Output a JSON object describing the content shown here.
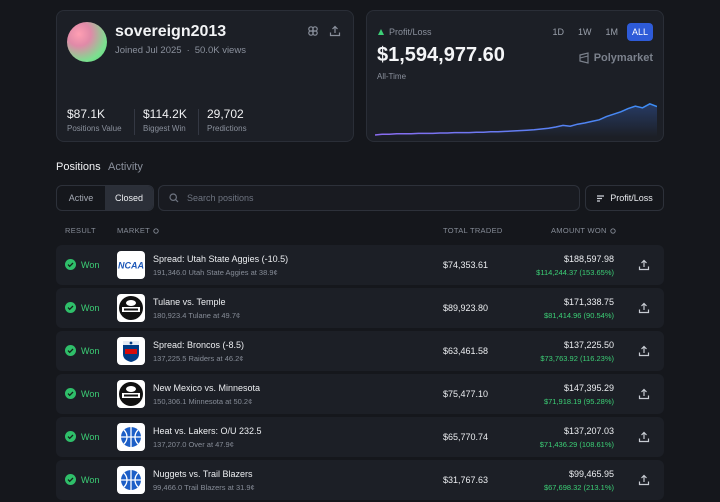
{
  "profile": {
    "username": "sovereign2013",
    "joined": "Joined Jul 2025",
    "views": "50.0K views",
    "stats": [
      {
        "value": "$87.1K",
        "label": "Positions Value"
      },
      {
        "value": "$114.2K",
        "label": "Biggest Win"
      },
      {
        "value": "29,702",
        "label": "Predictions"
      }
    ],
    "icons": [
      "link-icon",
      "share-icon"
    ]
  },
  "pnl": {
    "label": "Profit/Loss",
    "value": "$1,594,977.60",
    "period": "All-Time",
    "ranges": [
      "1D",
      "1W",
      "1M",
      "ALL"
    ],
    "active_range": "ALL",
    "brand": "Polymarket",
    "colors": {
      "line_start": "#8b6cf0",
      "line_end": "#3b8df5",
      "accent": "#2e5bd8"
    }
  },
  "tabs": {
    "positions": "Positions",
    "activity": "Activity"
  },
  "toolbar": {
    "active": "Active",
    "closed": "Closed",
    "search_placeholder": "Search positions",
    "sort_label": "Profit/Loss"
  },
  "table": {
    "headers": {
      "result": "RESULT",
      "market": "MARKET",
      "total_traded": "TOTAL TRADED",
      "amount_won": "AMOUNT WON"
    },
    "rows": [
      {
        "result": "Won",
        "logo": "ncaa",
        "market": "Spread: Utah State Aggies (-10.5)",
        "detail": "191,346.0 Utah State Aggies at 38.9¢",
        "traded": "$74,353.61",
        "amount": "$188,597.98",
        "gain": "$114,244.37 (153.65%)"
      },
      {
        "result": "Won",
        "logo": "college-football",
        "market": "Tulane vs. Temple",
        "detail": "180,923.4 Tulane at 49.7¢",
        "traded": "$89,923.80",
        "amount": "$171,338.75",
        "gain": "$81,414.96 (90.54%)"
      },
      {
        "result": "Won",
        "logo": "nfl",
        "market": "Spread: Broncos (-8.5)",
        "detail": "137,225.5 Raiders at 46.2¢",
        "traded": "$63,461.58",
        "amount": "$137,225.50",
        "gain": "$73,763.92 (116.23%)"
      },
      {
        "result": "Won",
        "logo": "college-football",
        "market": "New Mexico vs. Minnesota",
        "detail": "150,306.1 Minnesota at 50.2¢",
        "traded": "$75,477.10",
        "amount": "$147,395.29",
        "gain": "$71,918.19 (95.28%)"
      },
      {
        "result": "Won",
        "logo": "basketball",
        "market": "Heat vs. Lakers: O/U 232.5",
        "detail": "137,207.0 Over at 47.9¢",
        "traded": "$65,770.74",
        "amount": "$137,207.03",
        "gain": "$71,436.29 (108.61%)"
      },
      {
        "result": "Won",
        "logo": "basketball",
        "market": "Nuggets vs. Trail Blazers",
        "detail": "99,466.0 Trail Blazers at 31.9¢",
        "traded": "$31,767.63",
        "amount": "$99,465.95",
        "gain": "$67,698.32 (213.1%)"
      }
    ]
  },
  "chart_data": {
    "type": "area",
    "x": [
      0,
      1,
      2,
      3,
      4,
      5,
      6,
      7,
      8,
      9,
      10,
      11,
      12,
      13,
      14,
      15,
      16,
      17,
      18,
      19,
      20,
      21,
      22,
      23,
      24,
      25,
      26,
      27,
      28,
      29,
      30,
      31,
      32,
      33,
      34,
      35,
      36,
      37,
      38,
      39
    ],
    "values": [
      0,
      0.02,
      0.02,
      0.03,
      0.03,
      0.03,
      0.04,
      0.04,
      0.04,
      0.05,
      0.05,
      0.06,
      0.06,
      0.06,
      0.07,
      0.07,
      0.08,
      0.08,
      0.09,
      0.1,
      0.11,
      0.12,
      0.13,
      0.15,
      0.17,
      0.2,
      0.24,
      0.22,
      0.27,
      0.3,
      0.34,
      0.38,
      0.46,
      0.52,
      0.58,
      0.66,
      0.72,
      0.68,
      0.78,
      0.71
    ],
    "grid": false,
    "legend": "none"
  }
}
